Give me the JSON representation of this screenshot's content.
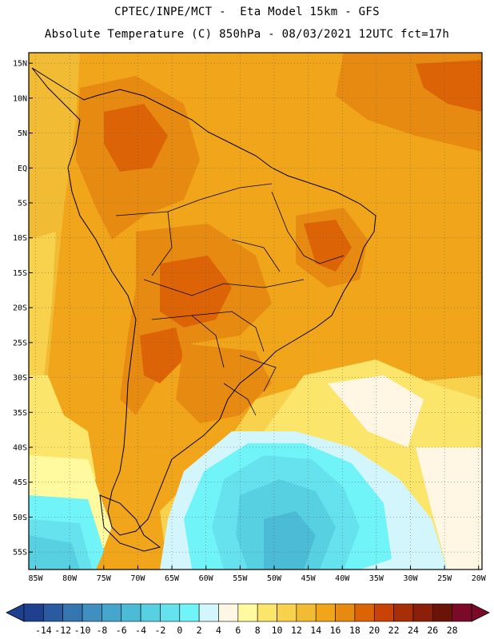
{
  "header": {
    "title_line1": "CPTEC/INPE/MCT -  Eta Model 15km - GFS",
    "title_line2": "Absolute Temperature (C) 850hPa - 08/03/2021 12UTC fct=17h"
  },
  "map": {
    "lat_labels": [
      "15N",
      "10N",
      "5N",
      "EQ",
      "5S",
      "10S",
      "15S",
      "20S",
      "25S",
      "30S",
      "35S",
      "40S",
      "45S",
      "50S",
      "55S"
    ],
    "lat_values": [
      15,
      10,
      5,
      0,
      -5,
      -10,
      -15,
      -20,
      -25,
      -30,
      -35,
      -40,
      -45,
      -50,
      -55
    ],
    "lon_labels": [
      "85W",
      "80W",
      "75W",
      "70W",
      "65W",
      "60W",
      "55W",
      "50W",
      "45W",
      "40W",
      "35W",
      "30W",
      "25W",
      "20W"
    ],
    "lon_values": [
      -85,
      -80,
      -75,
      -70,
      -65,
      -60,
      -55,
      -50,
      -45,
      -40,
      -35,
      -30,
      -25,
      -20
    ],
    "lat_range": [
      -57.5,
      16.5
    ],
    "lon_range": [
      -86,
      -19.5
    ]
  },
  "colorbar": {
    "labels": [
      "-14",
      "-12",
      "-10",
      "-8",
      "-6",
      "-4",
      "-2",
      "0",
      "2",
      "4",
      "6",
      "8",
      "10",
      "12",
      "14",
      "16",
      "18",
      "20",
      "22",
      "24",
      "26",
      "28"
    ],
    "colors": [
      "#1f3f8f",
      "#2a5aa0",
      "#3576b0",
      "#3f8fbf",
      "#45a5cc",
      "#4cbcd6",
      "#57d0e2",
      "#66e2ee",
      "#70f4f8",
      "#d2f6fb",
      "#fff6e4",
      "#fffaa0",
      "#fbe56a",
      "#f8d24d",
      "#f2bb34",
      "#f0a51a",
      "#e68a12",
      "#dc6407",
      "#c94307",
      "#a72f08",
      "#8a1f0a",
      "#6b1308",
      "#7a0a28"
    ],
    "min_arrow_color": "#1f3f8f",
    "max_arrow_color": "#7a0a28"
  }
}
